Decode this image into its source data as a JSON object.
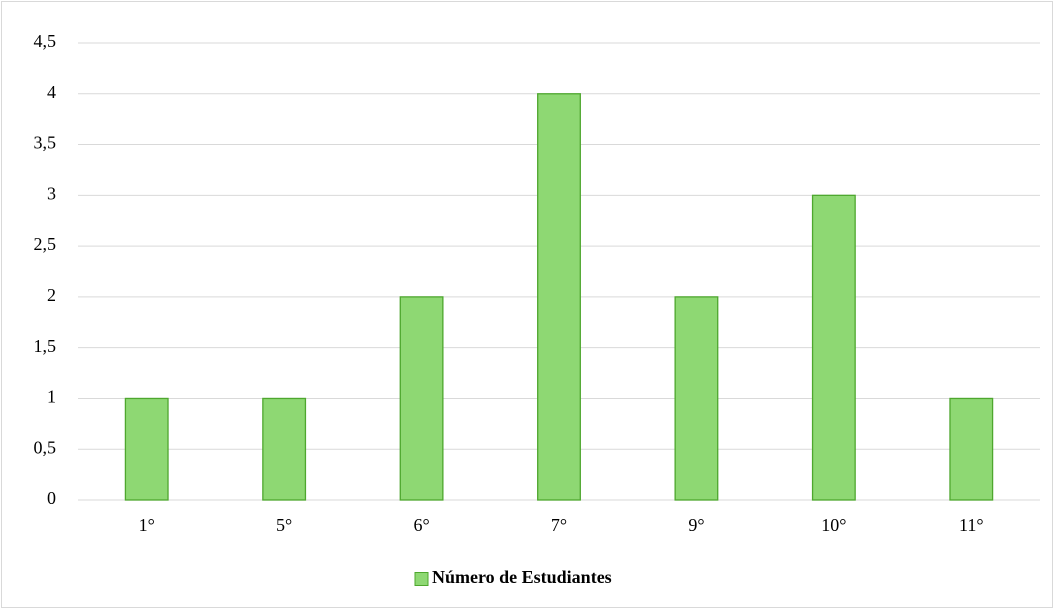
{
  "chart_data": {
    "type": "bar",
    "categories": [
      "1°",
      "5°",
      "6°",
      "7°",
      "9°",
      "10°",
      "11°"
    ],
    "series": [
      {
        "name": "Número de Estudiantes",
        "color": "#8ed873",
        "values": [
          1,
          1,
          2,
          4,
          2,
          3,
          1
        ]
      }
    ],
    "ylim": [
      0,
      4.5
    ],
    "yticks": [
      0,
      {
        "value": 0.5,
        "label": "0,5"
      },
      1,
      {
        "value": 1.5,
        "label": "1,5"
      },
      2,
      {
        "value": 2.5,
        "label": "2,5"
      },
      3,
      {
        "value": 3.5,
        "label": "3,5"
      },
      4,
      {
        "value": 4.5,
        "label": "4,5"
      }
    ],
    "grid": true,
    "legend": "bottom"
  }
}
